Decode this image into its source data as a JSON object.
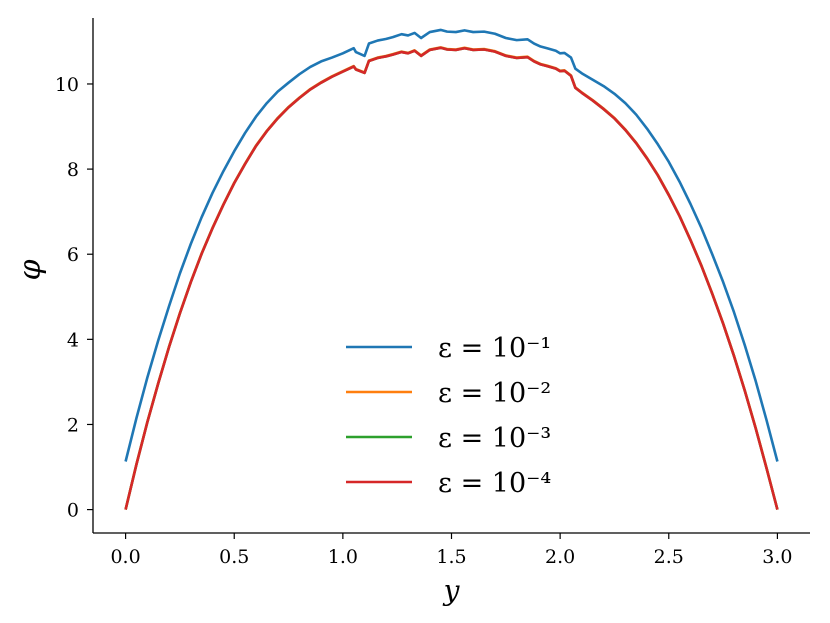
{
  "chart_data": {
    "type": "line",
    "xlabel": "y",
    "ylabel": "φ",
    "xlim": [
      -0.15,
      3.15
    ],
    "ylim": [
      -0.55,
      11.55
    ],
    "xticks": [
      "0.0",
      "0.5",
      "1.0",
      "1.5",
      "2.0",
      "2.5",
      "3.0"
    ],
    "yticks": [
      "0",
      "2",
      "4",
      "6",
      "8",
      "10"
    ],
    "grid": false,
    "legend_position": "lower center",
    "series": [
      {
        "name": "ε = 10⁻¹",
        "color": "#1f77b4",
        "points": [
          [
            0.0,
            1.13
          ],
          [
            0.05,
            2.15
          ],
          [
            0.1,
            3.1
          ],
          [
            0.15,
            3.97
          ],
          [
            0.2,
            4.78
          ],
          [
            0.25,
            5.55
          ],
          [
            0.3,
            6.24
          ],
          [
            0.35,
            6.87
          ],
          [
            0.4,
            7.44
          ],
          [
            0.45,
            7.95
          ],
          [
            0.5,
            8.42
          ],
          [
            0.55,
            8.85
          ],
          [
            0.6,
            9.23
          ],
          [
            0.65,
            9.55
          ],
          [
            0.7,
            9.82
          ],
          [
            0.75,
            10.03
          ],
          [
            0.8,
            10.23
          ],
          [
            0.85,
            10.4
          ],
          [
            0.9,
            10.53
          ],
          [
            0.95,
            10.62
          ],
          [
            1.0,
            10.72
          ],
          [
            1.05,
            10.84
          ],
          [
            1.06,
            10.75
          ],
          [
            1.1,
            10.66
          ],
          [
            1.12,
            10.95
          ],
          [
            1.16,
            11.02
          ],
          [
            1.2,
            11.06
          ],
          [
            1.23,
            11.1
          ],
          [
            1.27,
            11.17
          ],
          [
            1.3,
            11.14
          ],
          [
            1.33,
            11.2
          ],
          [
            1.36,
            11.08
          ],
          [
            1.4,
            11.22
          ],
          [
            1.45,
            11.27
          ],
          [
            1.48,
            11.23
          ],
          [
            1.52,
            11.22
          ],
          [
            1.56,
            11.26
          ],
          [
            1.6,
            11.22
          ],
          [
            1.65,
            11.23
          ],
          [
            1.7,
            11.18
          ],
          [
            1.75,
            11.08
          ],
          [
            1.8,
            11.03
          ],
          [
            1.85,
            11.05
          ],
          [
            1.88,
            10.95
          ],
          [
            1.91,
            10.88
          ],
          [
            1.94,
            10.84
          ],
          [
            1.98,
            10.78
          ],
          [
            2.0,
            10.72
          ],
          [
            2.02,
            10.73
          ],
          [
            2.05,
            10.62
          ],
          [
            2.07,
            10.36
          ],
          [
            2.1,
            10.25
          ],
          [
            2.15,
            10.1
          ],
          [
            2.2,
            9.95
          ],
          [
            2.25,
            9.77
          ],
          [
            2.3,
            9.55
          ],
          [
            2.35,
            9.28
          ],
          [
            2.4,
            8.95
          ],
          [
            2.45,
            8.58
          ],
          [
            2.5,
            8.17
          ],
          [
            2.55,
            7.7
          ],
          [
            2.6,
            7.18
          ],
          [
            2.65,
            6.62
          ],
          [
            2.7,
            6.0
          ],
          [
            2.75,
            5.35
          ],
          [
            2.8,
            4.64
          ],
          [
            2.85,
            3.86
          ],
          [
            2.9,
            3.02
          ],
          [
            2.95,
            2.1
          ],
          [
            3.0,
            1.13
          ]
        ]
      },
      {
        "name": "ε = 10⁻²",
        "color": "#ff7f0e",
        "points": [
          [
            0.0,
            0.0
          ],
          [
            0.05,
            1.07
          ],
          [
            0.1,
            2.06
          ],
          [
            0.15,
            2.97
          ],
          [
            0.2,
            3.83
          ],
          [
            0.25,
            4.62
          ],
          [
            0.3,
            5.35
          ],
          [
            0.35,
            6.02
          ],
          [
            0.4,
            6.62
          ],
          [
            0.45,
            7.17
          ],
          [
            0.5,
            7.68
          ],
          [
            0.55,
            8.13
          ],
          [
            0.6,
            8.55
          ],
          [
            0.65,
            8.9
          ],
          [
            0.7,
            9.2
          ],
          [
            0.75,
            9.46
          ],
          [
            0.8,
            9.68
          ],
          [
            0.85,
            9.88
          ],
          [
            0.9,
            10.04
          ],
          [
            0.95,
            10.18
          ],
          [
            1.0,
            10.3
          ],
          [
            1.05,
            10.42
          ],
          [
            1.06,
            10.35
          ],
          [
            1.1,
            10.27
          ],
          [
            1.12,
            10.55
          ],
          [
            1.16,
            10.62
          ],
          [
            1.2,
            10.66
          ],
          [
            1.23,
            10.7
          ],
          [
            1.27,
            10.76
          ],
          [
            1.3,
            10.73
          ],
          [
            1.33,
            10.79
          ],
          [
            1.36,
            10.67
          ],
          [
            1.4,
            10.81
          ],
          [
            1.45,
            10.86
          ],
          [
            1.48,
            10.82
          ],
          [
            1.52,
            10.81
          ],
          [
            1.56,
            10.85
          ],
          [
            1.6,
            10.81
          ],
          [
            1.65,
            10.82
          ],
          [
            1.7,
            10.77
          ],
          [
            1.75,
            10.67
          ],
          [
            1.8,
            10.62
          ],
          [
            1.85,
            10.64
          ],
          [
            1.88,
            10.54
          ],
          [
            1.91,
            10.47
          ],
          [
            1.94,
            10.43
          ],
          [
            1.98,
            10.37
          ],
          [
            2.0,
            10.31
          ],
          [
            2.02,
            10.32
          ],
          [
            2.05,
            10.2
          ],
          [
            2.07,
            9.92
          ],
          [
            2.1,
            9.8
          ],
          [
            2.15,
            9.62
          ],
          [
            2.2,
            9.42
          ],
          [
            2.25,
            9.2
          ],
          [
            2.3,
            8.93
          ],
          [
            2.35,
            8.62
          ],
          [
            2.4,
            8.26
          ],
          [
            2.45,
            7.86
          ],
          [
            2.5,
            7.4
          ],
          [
            2.55,
            6.9
          ],
          [
            2.6,
            6.34
          ],
          [
            2.65,
            5.74
          ],
          [
            2.7,
            5.08
          ],
          [
            2.75,
            4.38
          ],
          [
            2.8,
            3.62
          ],
          [
            2.85,
            2.8
          ],
          [
            2.9,
            1.92
          ],
          [
            2.95,
            0.98
          ],
          [
            3.0,
            0.0
          ]
        ]
      },
      {
        "name": "ε = 10⁻³",
        "color": "#2ca02c",
        "points": [
          [
            0.0,
            0.0
          ],
          [
            0.05,
            1.06
          ],
          [
            0.1,
            2.05
          ],
          [
            0.15,
            2.96
          ],
          [
            0.2,
            3.82
          ],
          [
            0.25,
            4.61
          ],
          [
            0.3,
            5.34
          ],
          [
            0.35,
            6.01
          ],
          [
            0.4,
            6.61
          ],
          [
            0.45,
            7.16
          ],
          [
            0.5,
            7.67
          ],
          [
            0.55,
            8.12
          ],
          [
            0.6,
            8.54
          ],
          [
            0.65,
            8.89
          ],
          [
            0.7,
            9.19
          ],
          [
            0.75,
            9.45
          ],
          [
            0.8,
            9.67
          ],
          [
            0.85,
            9.87
          ],
          [
            0.9,
            10.03
          ],
          [
            0.95,
            10.17
          ],
          [
            1.0,
            10.29
          ],
          [
            1.05,
            10.41
          ],
          [
            1.06,
            10.34
          ],
          [
            1.1,
            10.26
          ],
          [
            1.12,
            10.54
          ],
          [
            1.16,
            10.61
          ],
          [
            1.2,
            10.65
          ],
          [
            1.23,
            10.69
          ],
          [
            1.27,
            10.75
          ],
          [
            1.3,
            10.72
          ],
          [
            1.33,
            10.78
          ],
          [
            1.36,
            10.66
          ],
          [
            1.4,
            10.8
          ],
          [
            1.45,
            10.85
          ],
          [
            1.48,
            10.81
          ],
          [
            1.52,
            10.8
          ],
          [
            1.56,
            10.84
          ],
          [
            1.6,
            10.8
          ],
          [
            1.65,
            10.81
          ],
          [
            1.7,
            10.76
          ],
          [
            1.75,
            10.66
          ],
          [
            1.8,
            10.61
          ],
          [
            1.85,
            10.63
          ],
          [
            1.88,
            10.53
          ],
          [
            1.91,
            10.46
          ],
          [
            1.94,
            10.42
          ],
          [
            1.98,
            10.36
          ],
          [
            2.0,
            10.3
          ],
          [
            2.02,
            10.31
          ],
          [
            2.05,
            10.19
          ],
          [
            2.07,
            9.91
          ],
          [
            2.1,
            9.79
          ],
          [
            2.15,
            9.61
          ],
          [
            2.2,
            9.41
          ],
          [
            2.25,
            9.19
          ],
          [
            2.3,
            8.92
          ],
          [
            2.35,
            8.61
          ],
          [
            2.4,
            8.25
          ],
          [
            2.45,
            7.85
          ],
          [
            2.5,
            7.39
          ],
          [
            2.55,
            6.89
          ],
          [
            2.6,
            6.33
          ],
          [
            2.65,
            5.73
          ],
          [
            2.7,
            5.07
          ],
          [
            2.75,
            4.37
          ],
          [
            2.8,
            3.61
          ],
          [
            2.85,
            2.79
          ],
          [
            2.9,
            1.91
          ],
          [
            2.95,
            0.97
          ],
          [
            3.0,
            0.0
          ]
        ]
      },
      {
        "name": "ε = 10⁻⁴",
        "color": "#d62728",
        "points": [
          [
            0.0,
            0.0
          ],
          [
            0.05,
            1.06
          ],
          [
            0.1,
            2.05
          ],
          [
            0.15,
            2.96
          ],
          [
            0.2,
            3.82
          ],
          [
            0.25,
            4.61
          ],
          [
            0.3,
            5.34
          ],
          [
            0.35,
            6.01
          ],
          [
            0.4,
            6.61
          ],
          [
            0.45,
            7.16
          ],
          [
            0.5,
            7.67
          ],
          [
            0.55,
            8.12
          ],
          [
            0.6,
            8.54
          ],
          [
            0.65,
            8.89
          ],
          [
            0.7,
            9.19
          ],
          [
            0.75,
            9.45
          ],
          [
            0.8,
            9.67
          ],
          [
            0.85,
            9.87
          ],
          [
            0.9,
            10.03
          ],
          [
            0.95,
            10.17
          ],
          [
            1.0,
            10.29
          ],
          [
            1.05,
            10.41
          ],
          [
            1.06,
            10.34
          ],
          [
            1.1,
            10.26
          ],
          [
            1.12,
            10.54
          ],
          [
            1.16,
            10.61
          ],
          [
            1.2,
            10.65
          ],
          [
            1.23,
            10.69
          ],
          [
            1.27,
            10.75
          ],
          [
            1.3,
            10.72
          ],
          [
            1.33,
            10.78
          ],
          [
            1.36,
            10.66
          ],
          [
            1.4,
            10.8
          ],
          [
            1.45,
            10.85
          ],
          [
            1.48,
            10.81
          ],
          [
            1.52,
            10.8
          ],
          [
            1.56,
            10.84
          ],
          [
            1.6,
            10.8
          ],
          [
            1.65,
            10.81
          ],
          [
            1.7,
            10.76
          ],
          [
            1.75,
            10.66
          ],
          [
            1.8,
            10.61
          ],
          [
            1.85,
            10.63
          ],
          [
            1.88,
            10.53
          ],
          [
            1.91,
            10.46
          ],
          [
            1.94,
            10.42
          ],
          [
            1.98,
            10.36
          ],
          [
            2.0,
            10.3
          ],
          [
            2.02,
            10.31
          ],
          [
            2.05,
            10.19
          ],
          [
            2.07,
            9.91
          ],
          [
            2.1,
            9.79
          ],
          [
            2.15,
            9.61
          ],
          [
            2.2,
            9.41
          ],
          [
            2.25,
            9.19
          ],
          [
            2.3,
            8.92
          ],
          [
            2.35,
            8.61
          ],
          [
            2.4,
            8.25
          ],
          [
            2.45,
            7.85
          ],
          [
            2.5,
            7.39
          ],
          [
            2.55,
            6.89
          ],
          [
            2.6,
            6.33
          ],
          [
            2.65,
            5.73
          ],
          [
            2.7,
            5.07
          ],
          [
            2.75,
            4.37
          ],
          [
            2.8,
            3.61
          ],
          [
            2.85,
            2.79
          ],
          [
            2.9,
            1.91
          ],
          [
            2.95,
            0.97
          ],
          [
            3.0,
            0.0
          ]
        ]
      }
    ]
  }
}
